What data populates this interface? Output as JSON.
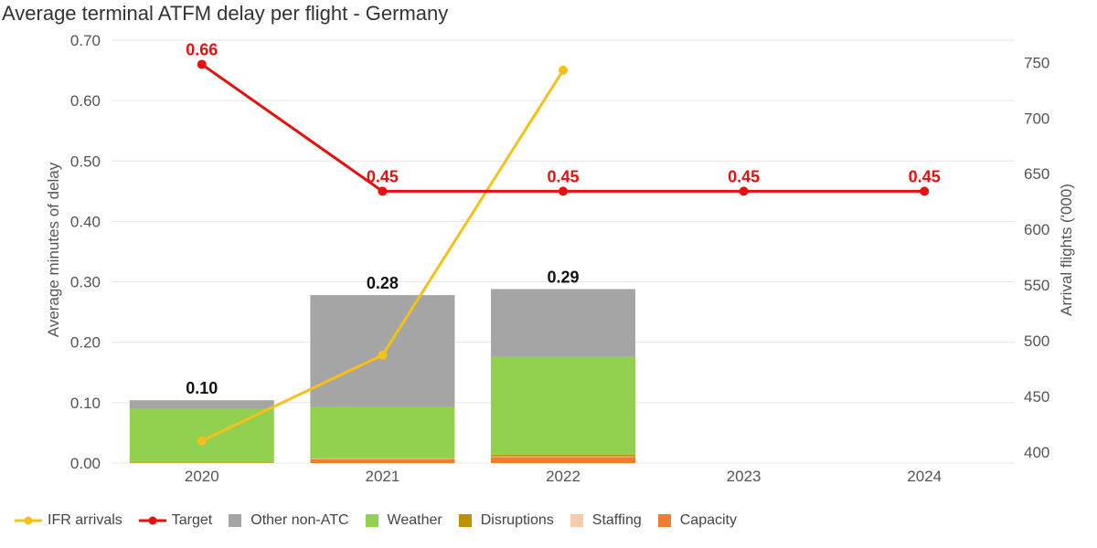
{
  "chart_data": {
    "type": "bar",
    "title": "Average terminal ATFM delay per flight - Germany",
    "ylabel_left": "Average minutes of delay",
    "ylabel_right": "Arrival flights ('000)",
    "categories": [
      "2020",
      "2021",
      "2022",
      "2023",
      "2024"
    ],
    "ylim_left": [
      0,
      0.7
    ],
    "ylim_right": [
      390,
      770
    ],
    "yticks_left": [
      "0.00",
      "0.10",
      "0.20",
      "0.30",
      "0.40",
      "0.50",
      "0.60",
      "0.70"
    ],
    "yticks_right": [
      "400",
      "450",
      "500",
      "550",
      "600",
      "650",
      "700",
      "750"
    ],
    "grid": true,
    "legend_position": "bottom",
    "stacked_series": [
      {
        "name": "Capacity",
        "color": "#ed7d31",
        "values": [
          0.0,
          0.006,
          0.01,
          null,
          null
        ]
      },
      {
        "name": "Staffing",
        "color": "#f8cbad",
        "values": [
          0.0,
          0.001,
          0.001,
          null,
          null
        ]
      },
      {
        "name": "Disruptions",
        "color": "#bf9000",
        "values": [
          0.001,
          0.001,
          0.003,
          null,
          null
        ]
      },
      {
        "name": "Weather",
        "color": "#92d050",
        "values": [
          0.089,
          0.085,
          0.162,
          null,
          null
        ]
      },
      {
        "name": "Other non-ATC",
        "color": "#a5a5a5",
        "values": [
          0.014,
          0.185,
          0.112,
          null,
          null
        ]
      }
    ],
    "bar_totals": [
      "0.10",
      "0.28",
      "0.29",
      null,
      null
    ],
    "line_series": [
      {
        "name": "IFR arrivals",
        "color": "#f5c018",
        "axis": "right",
        "values": [
          410,
          487,
          743,
          null,
          null
        ]
      },
      {
        "name": "Target",
        "color": "#e8100f",
        "axis": "left",
        "values": [
          0.66,
          0.45,
          0.45,
          0.45,
          0.45
        ],
        "labels": [
          "0.66",
          "0.45",
          "0.45",
          "0.45",
          "0.45"
        ]
      }
    ]
  },
  "legend": [
    {
      "label": "IFR arrivals",
      "color": "#f5c018",
      "kind": "line"
    },
    {
      "label": "Target",
      "color": "#e8100f",
      "kind": "line"
    },
    {
      "label": "Other non-ATC",
      "color": "#a5a5a5",
      "kind": "rect"
    },
    {
      "label": "Weather",
      "color": "#92d050",
      "kind": "rect"
    },
    {
      "label": "Disruptions",
      "color": "#bf9000",
      "kind": "rect"
    },
    {
      "label": "Staffing",
      "color": "#f8cbad",
      "kind": "rect"
    },
    {
      "label": "Capacity",
      "color": "#ed7d31",
      "kind": "rect"
    }
  ]
}
